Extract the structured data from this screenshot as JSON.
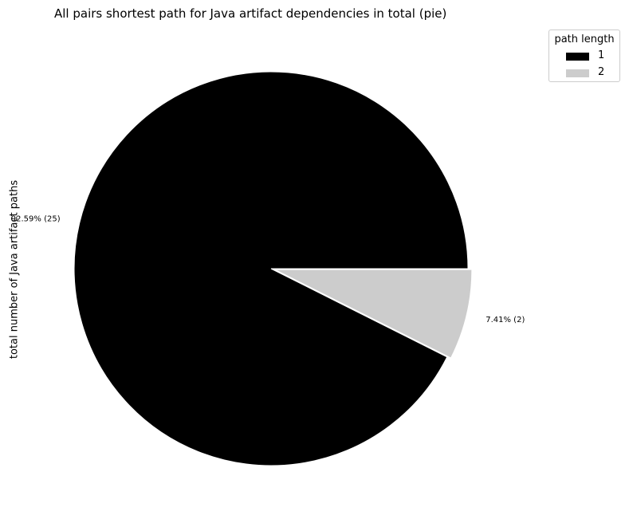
{
  "chart_data": {
    "type": "pie",
    "title": "All pairs shortest path for Java artifact dependencies in total (pie)",
    "ylabel": "total number of Java artifact paths",
    "legend_title": "path length",
    "legend_position": "top-right",
    "slices": [
      {
        "label": "1",
        "value": 25,
        "percent_label": "92.59% (25)",
        "color": "#000000",
        "explode": false
      },
      {
        "label": "2",
        "value": 2,
        "percent_label": "7.41% (2)",
        "color": "#cccccc",
        "explode": true
      }
    ]
  }
}
